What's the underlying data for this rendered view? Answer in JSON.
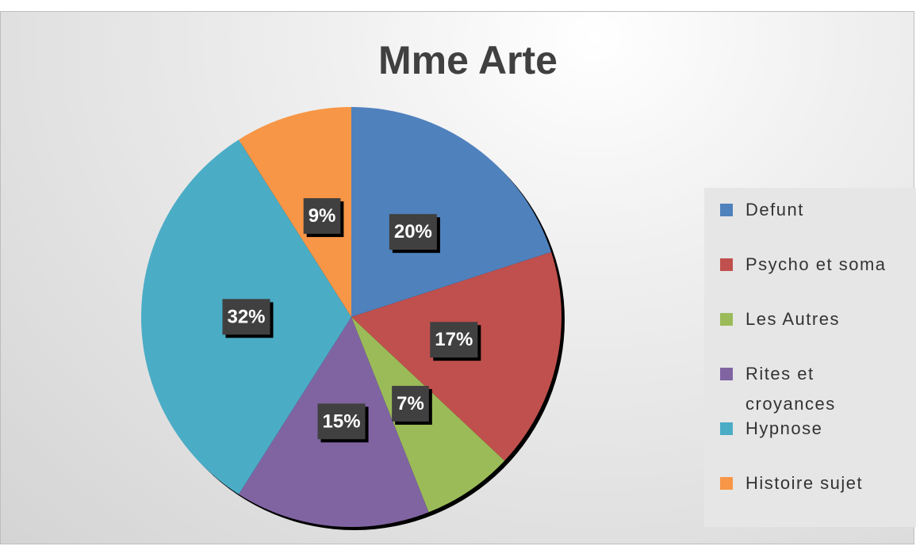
{
  "chart_data": {
    "type": "pie",
    "title": "Mme Arte",
    "categories": [
      "Defunt",
      "Psycho et soma",
      "Les Autres",
      "Rites et croyances",
      "Hypnose",
      "Histoire sujet"
    ],
    "values": [
      20,
      17,
      7,
      15,
      32,
      9
    ],
    "value_labels": [
      "20%",
      "17%",
      "7%",
      "15%",
      "32%",
      "9%"
    ],
    "colors": [
      "#4f81bd",
      "#c0504d",
      "#9bbb59",
      "#8064a2",
      "#4bacc6",
      "#f79646"
    ],
    "legend": "right"
  }
}
